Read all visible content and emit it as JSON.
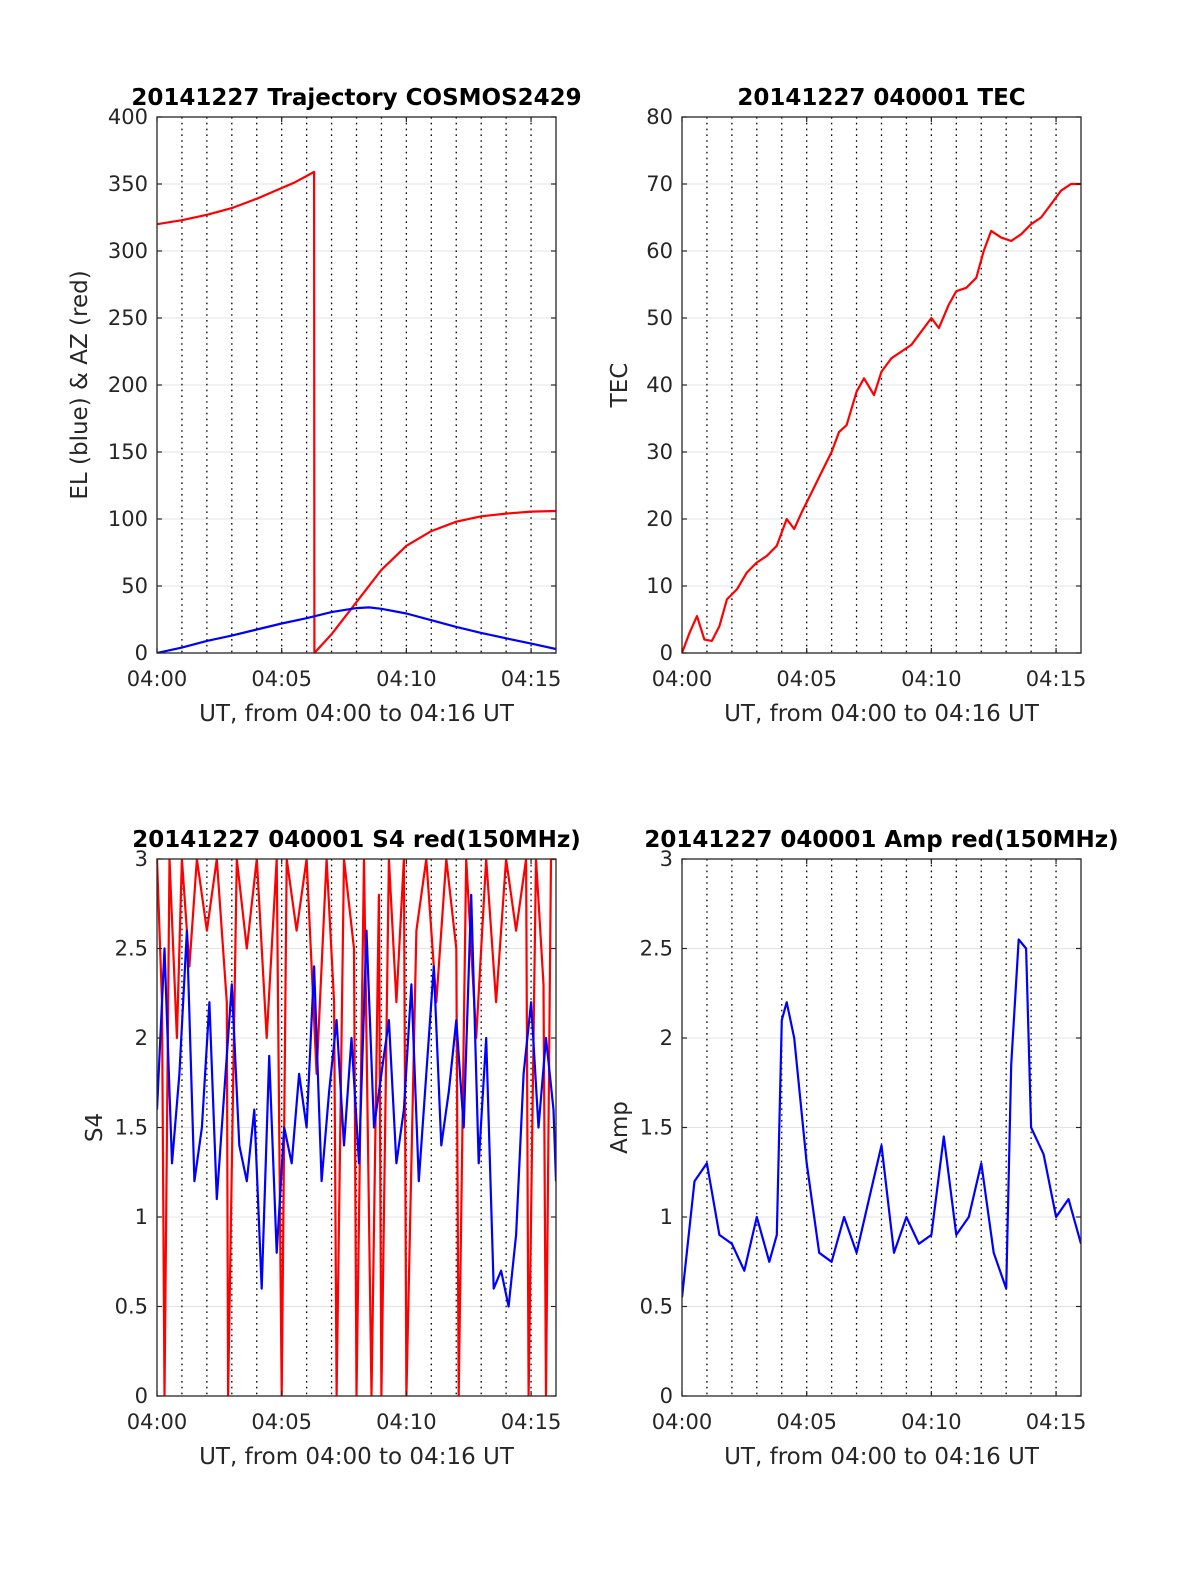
{
  "chart_data": [
    {
      "type": "line",
      "title": "20141227 Trajectory COSMOS2429",
      "xlabel": "UT, from 04:00 to 04:16 UT",
      "ylabel": "EL (blue) & AZ (red)",
      "xlim": [
        0,
        16
      ],
      "ylim": [
        0,
        400
      ],
      "xticks": [
        0,
        5,
        10,
        15
      ],
      "xtick_labels": [
        "04:00",
        "04:05",
        "04:10",
        "04:15"
      ],
      "yticks": [
        0,
        50,
        100,
        150,
        200,
        250,
        300,
        350,
        400
      ],
      "ytick_labels": [
        "0",
        "50",
        "100",
        "150",
        "200",
        "250",
        "300",
        "350",
        "400"
      ],
      "grid": "dotted vertical lines every minute, light horizontal gridlines",
      "series": [
        {
          "color": "#ff0000",
          "x": [
            0,
            1,
            2,
            3,
            4,
            5,
            5.5,
            6,
            6.3,
            6.31,
            7,
            8,
            9,
            10,
            11,
            12,
            13,
            14,
            15,
            16
          ],
          "y": [
            320,
            323,
            327,
            332,
            339,
            347,
            351,
            356,
            359,
            0,
            14,
            38,
            62,
            80,
            91,
            98,
            102,
            104,
            105.5,
            106
          ]
        },
        {
          "color": "#0000ff",
          "x": [
            0,
            1,
            2,
            3,
            4,
            5,
            6,
            7,
            8,
            8.5,
            9,
            10,
            11,
            12,
            13,
            14,
            15,
            16
          ],
          "y": [
            0,
            4,
            9,
            13,
            17.5,
            22,
            26,
            30.5,
            33.5,
            34,
            33,
            29.5,
            24.5,
            19.5,
            15,
            11,
            7,
            3
          ]
        }
      ]
    },
    {
      "type": "line",
      "title": "20141227 040001 TEC",
      "xlabel": "UT, from 04:00 to 04:16 UT",
      "ylabel": "TEC",
      "xlim": [
        0,
        16
      ],
      "ylim": [
        0,
        80
      ],
      "xticks": [
        0,
        5,
        10,
        15
      ],
      "xtick_labels": [
        "04:00",
        "04:05",
        "04:10",
        "04:15"
      ],
      "yticks": [
        0,
        10,
        20,
        30,
        40,
        50,
        60,
        70,
        80
      ],
      "ytick_labels": [
        "0",
        "10",
        "20",
        "30",
        "40",
        "50",
        "60",
        "70",
        "80"
      ],
      "grid": "dotted vertical lines every minute, light horizontal gridlines",
      "series": [
        {
          "color": "#ff0000",
          "x": [
            0,
            0.3,
            0.6,
            0.9,
            1.2,
            1.5,
            1.8,
            2.2,
            2.6,
            3.0,
            3.4,
            3.8,
            4.2,
            4.5,
            4.8,
            5.2,
            5.6,
            6.0,
            6.3,
            6.6,
            7.0,
            7.3,
            7.7,
            8.0,
            8.4,
            8.8,
            9.2,
            9.6,
            10.0,
            10.3,
            10.7,
            11.0,
            11.4,
            11.8,
            12.1,
            12.4,
            12.8,
            13.2,
            13.6,
            14.0,
            14.4,
            14.8,
            15.2,
            15.6,
            16.0
          ],
          "y": [
            0,
            3,
            5.5,
            2,
            1.8,
            4,
            8,
            9.5,
            12,
            13.5,
            14.5,
            16,
            20,
            18.5,
            21,
            24,
            27,
            30,
            33,
            34,
            39,
            41,
            38.5,
            42,
            44,
            45,
            46,
            48,
            50,
            48.5,
            52,
            54,
            54.5,
            56,
            60,
            63,
            62,
            61.5,
            62.5,
            64,
            65,
            67,
            69,
            70,
            70
          ]
        }
      ]
    },
    {
      "type": "line",
      "title": "20141227 040001 S4 red(150MHz)",
      "xlabel": "UT, from 04:00 to 04:16 UT",
      "ylabel": "S4",
      "xlim": [
        0,
        16
      ],
      "ylim": [
        0,
        3
      ],
      "xticks": [
        0,
        5,
        10,
        15
      ],
      "xtick_labels": [
        "04:00",
        "04:05",
        "04:10",
        "04:15"
      ],
      "yticks": [
        0,
        0.5,
        1,
        1.5,
        2,
        2.5,
        3
      ],
      "ytick_labels": [
        "0",
        "0.5",
        "1",
        "1.5",
        "2",
        "2.5",
        "3"
      ],
      "grid": "dotted vertical lines every minute, light horizontal gridlines",
      "series": [
        {
          "color": "#ff0000",
          "x": [
            0,
            0.2,
            0.3,
            0.5,
            0.8,
            1.0,
            1.3,
            1.6,
            2.0,
            2.4,
            2.8,
            2.85,
            3.2,
            3.6,
            4.0,
            4.4,
            4.8,
            5.0,
            5.2,
            5.6,
            6.0,
            6.4,
            6.8,
            7.1,
            7.2,
            7.5,
            7.9,
            8.0,
            8.3,
            8.6,
            8.9,
            9.0,
            9.3,
            9.6,
            9.9,
            10.0,
            10.4,
            10.8,
            11.2,
            11.6,
            12.0,
            12.1,
            12.4,
            12.8,
            13.2,
            13.6,
            14.0,
            14.4,
            14.8,
            14.9,
            15.2,
            15.5,
            15.6,
            15.8,
            16.0
          ],
          "y": [
            3,
            2.2,
            0,
            3,
            2.0,
            3,
            2.4,
            3,
            2.6,
            3,
            2.2,
            0,
            3,
            2.5,
            3,
            2.0,
            3,
            0,
            3,
            2.6,
            3,
            1.8,
            3,
            2.2,
            0,
            3,
            2.5,
            0,
            3,
            0,
            2.8,
            0,
            3,
            2.2,
            3,
            0,
            2.6,
            3,
            2.2,
            3,
            2.5,
            0,
            3,
            2.0,
            3,
            2.2,
            3,
            2.6,
            3,
            0,
            3,
            2.3,
            0,
            3,
            3
          ]
        },
        {
          "color": "#0000ff",
          "x": [
            0,
            0.3,
            0.6,
            0.9,
            1.2,
            1.5,
            1.8,
            2.1,
            2.4,
            2.7,
            3.0,
            3.3,
            3.6,
            3.9,
            4.2,
            4.5,
            4.8,
            5.1,
            5.4,
            5.7,
            6.0,
            6.3,
            6.6,
            6.9,
            7.2,
            7.5,
            7.8,
            8.1,
            8.4,
            8.7,
            9.0,
            9.3,
            9.6,
            9.9,
            10.2,
            10.5,
            10.8,
            11.1,
            11.4,
            11.7,
            12.0,
            12.3,
            12.6,
            12.9,
            13.2,
            13.5,
            13.8,
            14.1,
            14.4,
            14.7,
            15.0,
            15.3,
            15.6,
            15.9,
            16.0
          ],
          "y": [
            1.6,
            2.5,
            1.3,
            1.8,
            2.6,
            1.2,
            1.5,
            2.2,
            1.1,
            1.7,
            2.3,
            1.4,
            1.2,
            1.6,
            0.6,
            1.9,
            0.8,
            1.5,
            1.3,
            1.8,
            1.5,
            2.4,
            1.2,
            1.7,
            2.1,
            1.4,
            2.0,
            1.3,
            2.6,
            1.5,
            1.8,
            2.1,
            1.3,
            1.6,
            2.3,
            1.2,
            1.8,
            2.4,
            1.4,
            1.7,
            2.1,
            1.5,
            2.8,
            1.3,
            2.0,
            0.6,
            0.7,
            0.5,
            0.9,
            1.8,
            2.2,
            1.5,
            2.0,
            1.6,
            1.2
          ]
        }
      ]
    },
    {
      "type": "line",
      "title": "20141227 040001 Amp red(150MHz)",
      "xlabel": "UT, from 04:00 to 04:16 UT",
      "ylabel": "Amp",
      "xlim": [
        0,
        16
      ],
      "ylim": [
        0,
        3
      ],
      "xticks": [
        0,
        5,
        10,
        15
      ],
      "xtick_labels": [
        "04:00",
        "04:05",
        "04:10",
        "04:15"
      ],
      "yticks": [
        0,
        0.5,
        1,
        1.5,
        2,
        2.5,
        3
      ],
      "ytick_labels": [
        "0",
        "0.5",
        "1",
        "1.5",
        "2",
        "2.5",
        "3"
      ],
      "grid": "dotted vertical lines every minute, light horizontal gridlines",
      "series": [
        {
          "color": "#0000ff",
          "x": [
            0,
            0.5,
            1.0,
            1.5,
            2.0,
            2.5,
            3.0,
            3.5,
            3.8,
            4.0,
            4.2,
            4.5,
            5.0,
            5.5,
            6.0,
            6.5,
            7.0,
            7.5,
            8.0,
            8.5,
            9.0,
            9.5,
            10.0,
            10.5,
            11.0,
            11.5,
            12.0,
            12.5,
            13.0,
            13.2,
            13.5,
            13.8,
            14.0,
            14.5,
            15.0,
            15.5,
            16.0
          ],
          "y": [
            0.55,
            1.2,
            1.3,
            0.9,
            0.85,
            0.7,
            1.0,
            0.75,
            0.9,
            2.1,
            2.2,
            2.0,
            1.3,
            0.8,
            0.75,
            1.0,
            0.8,
            1.1,
            1.4,
            0.8,
            1.0,
            0.85,
            0.9,
            1.45,
            0.9,
            1.0,
            1.3,
            0.8,
            0.6,
            1.85,
            2.55,
            2.5,
            1.5,
            1.35,
            1.0,
            1.1,
            0.85
          ]
        }
      ]
    }
  ]
}
